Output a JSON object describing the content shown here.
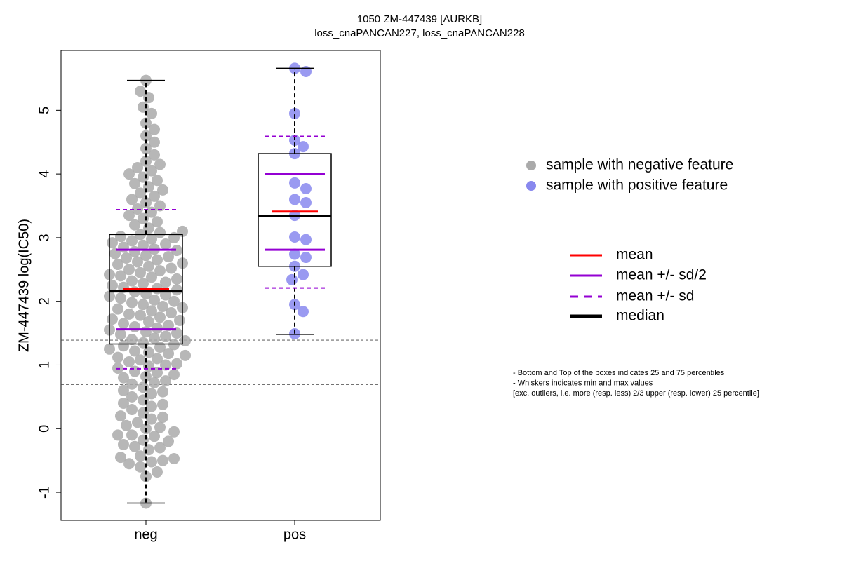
{
  "chart_data": {
    "type": "box",
    "title": "1050 ZM-447439 [AURKB]",
    "subtitle": "loss_cnaPANCAN227, loss_cnaPANCAN228",
    "ylabel": "ZM-447439 log(IC50)",
    "ylim": [
      -1.44,
      5.94
    ],
    "yticks": [
      -1,
      0,
      1,
      2,
      3,
      4,
      5
    ],
    "hlines": [
      1.39,
      0.69
    ],
    "categories": [
      "neg",
      "pos"
    ],
    "groups": [
      {
        "name": "sample with negative feature",
        "color": "#aaaaaa",
        "min": -1.17,
        "q1": 1.33,
        "median": 2.16,
        "q3": 3.05,
        "max": 5.47,
        "mean": 2.19,
        "half_sd_lines": [
          2.81,
          1.56
        ],
        "sd_lines": [
          3.44,
          0.94
        ],
        "points": [
          -1.17,
          -0.75,
          -0.68,
          -0.6,
          -0.55,
          -0.52,
          -0.5,
          -0.47,
          -0.45,
          -0.43,
          -0.33,
          -0.3,
          -0.28,
          -0.25,
          -0.2,
          -0.18,
          -0.12,
          -0.1,
          -0.1,
          -0.05,
          0.0,
          0.02,
          0.05,
          0.1,
          0.15,
          0.18,
          0.2,
          0.25,
          0.3,
          0.35,
          0.38,
          0.4,
          0.45,
          0.5,
          0.55,
          0.58,
          0.6,
          0.65,
          0.7,
          0.72,
          0.75,
          0.8,
          0.82,
          0.85,
          0.88,
          0.9,
          0.95,
          0.98,
          1.0,
          1.02,
          1.05,
          1.08,
          1.1,
          1.12,
          1.15,
          1.18,
          1.2,
          1.22,
          1.25,
          1.28,
          1.3,
          1.32,
          1.35,
          1.38,
          1.4,
          1.42,
          1.45,
          1.48,
          1.5,
          1.52,
          1.55,
          1.58,
          1.6,
          1.62,
          1.65,
          1.68,
          1.7,
          1.72,
          1.75,
          1.78,
          1.8,
          1.82,
          1.85,
          1.88,
          1.9,
          1.92,
          1.95,
          1.98,
          2.0,
          2.02,
          2.05,
          2.08,
          2.1,
          2.12,
          2.15,
          2.18,
          2.2,
          2.22,
          2.25,
          2.28,
          2.3,
          2.32,
          2.35,
          2.38,
          2.4,
          2.42,
          2.45,
          2.48,
          2.5,
          2.52,
          2.55,
          2.58,
          2.6,
          2.62,
          2.65,
          2.68,
          2.7,
          2.72,
          2.75,
          2.78,
          2.8,
          2.82,
          2.85,
          2.88,
          2.9,
          2.92,
          2.95,
          2.98,
          3.0,
          3.02,
          3.05,
          3.08,
          3.1,
          3.15,
          3.2,
          3.25,
          3.3,
          3.35,
          3.4,
          3.45,
          3.5,
          3.55,
          3.6,
          3.65,
          3.7,
          3.75,
          3.8,
          3.85,
          3.9,
          3.95,
          4.0,
          4.05,
          4.1,
          4.15,
          4.2,
          4.3,
          4.4,
          4.5,
          4.6,
          4.7,
          4.8,
          4.95,
          5.05,
          5.2,
          5.3,
          5.47
        ]
      },
      {
        "name": "sample with positive feature",
        "color": "#8888ee",
        "min": 1.48,
        "q1": 2.55,
        "median": 3.34,
        "q3": 4.32,
        "max": 5.66,
        "mean": 3.41,
        "half_sd_lines": [
          4.0,
          2.81
        ],
        "sd_lines": [
          4.59,
          2.21
        ],
        "points": [
          5.66,
          5.61,
          4.95,
          4.53,
          4.43,
          4.32,
          3.86,
          3.77,
          3.6,
          3.55,
          3.35,
          3.01,
          2.97,
          2.74,
          2.69,
          2.55,
          2.42,
          2.34,
          1.95,
          1.84,
          1.49
        ]
      }
    ],
    "stat_legend": [
      {
        "name": "mean",
        "color": "#ff0000"
      },
      {
        "name": "mean +/- sd/2",
        "color": "#9400d3"
      },
      {
        "name": "mean +/- sd",
        "color": "#9400d3"
      },
      {
        "name": "median",
        "color": "#000000"
      }
    ],
    "notes": [
      "- Bottom and Top of the boxes indicates 25 and 75 percentiles",
      "- Whiskers indicates min and max values",
      "[exc. outliers, i.e. more (resp. less) 2/3 upper (resp. lower) 25 percentile]"
    ]
  }
}
